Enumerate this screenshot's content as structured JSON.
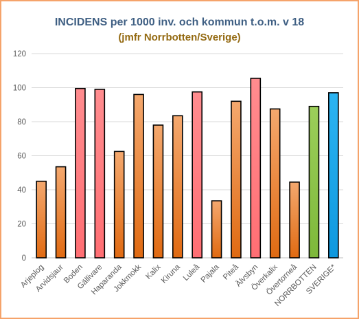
{
  "colors": {
    "bar_orange": "#E07C2E",
    "bar_pink": "#FF7C80",
    "bar_green": "#8BC34A",
    "bar_blue": "#1AA5E8",
    "frame_border": "#F5A36A",
    "title_color": "#3F5F83",
    "subtitle_color": "#946A12"
  },
  "chart_data": {
    "type": "bar",
    "title": "INCIDENS per 1000 inv. och kommun t.o.m. v 18",
    "subtitle": "(jmfr Norrbotten/Sverige)",
    "xlabel": "",
    "ylabel": "",
    "ylim": [
      0,
      120
    ],
    "yticks": [
      0,
      20,
      40,
      60,
      80,
      100,
      120
    ],
    "grid": true,
    "categories": [
      "Arjeplog",
      "Arvidsjaur",
      "Boden",
      "Gällivare",
      "Haparanda",
      "Jokkmokk",
      "Kalix",
      "Kiruna",
      "Luleå",
      "Pajala",
      "Piteå",
      "Älvsbyn",
      "Överkalix",
      "Övertorneå",
      "NORRBOTTEN",
      "SVERIGE*"
    ],
    "values": [
      45,
      53.5,
      99.5,
      99,
      62.5,
      96,
      78,
      83.5,
      97.5,
      33.5,
      92,
      105.5,
      87.5,
      44.5,
      89,
      97
    ],
    "bar_colors": [
      "orange",
      "orange",
      "pink",
      "pink",
      "orange",
      "orange",
      "orange",
      "orange",
      "pink",
      "orange",
      "orange",
      "pink",
      "orange",
      "orange",
      "green",
      "blue"
    ]
  }
}
